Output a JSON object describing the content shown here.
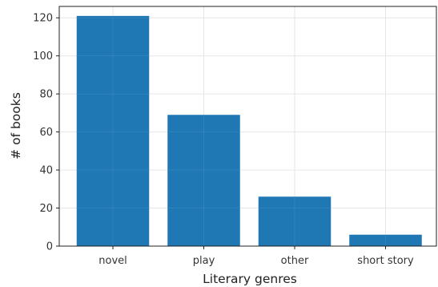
{
  "chart_data": {
    "type": "bar",
    "categories": [
      "novel",
      "play",
      "other",
      "short story"
    ],
    "values": [
      121,
      69,
      26,
      6
    ],
    "xlabel": "Literary genres",
    "ylabel": "# of books",
    "ylim": [
      0,
      126
    ],
    "yticks": [
      0,
      20,
      40,
      60,
      80,
      100,
      120
    ],
    "grid": true,
    "bar_color": "#1f77b4",
    "grid_color": "#e6e6e6"
  }
}
